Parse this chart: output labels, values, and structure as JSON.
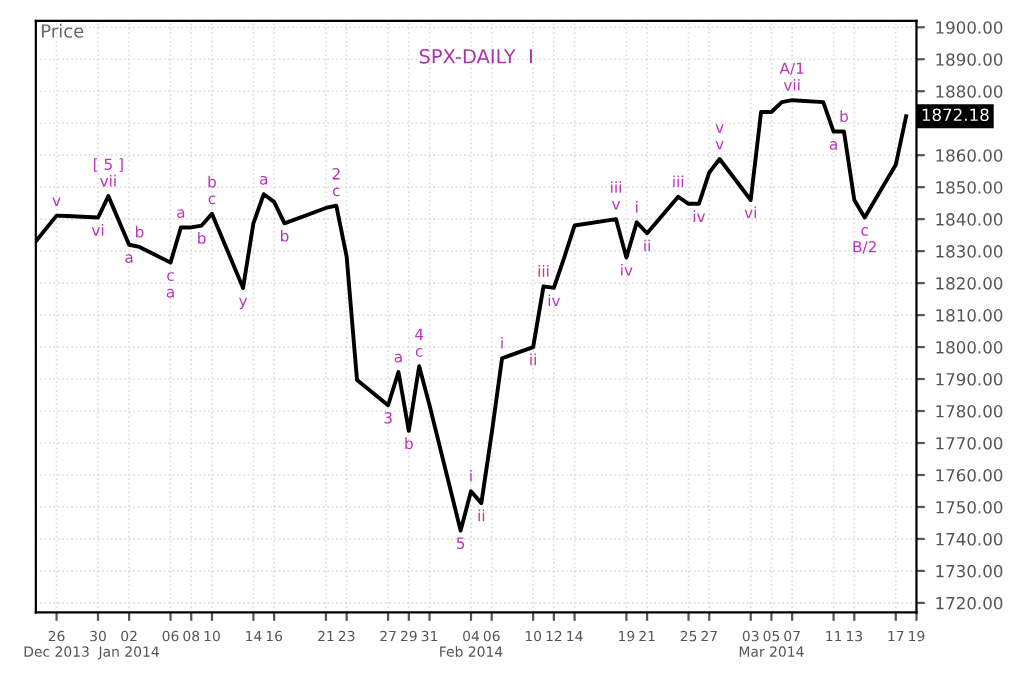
{
  "chart_data": {
    "type": "line",
    "title": "SPX-DAILY  I",
    "ylabel": "Price",
    "x": [
      "2013-12-24",
      "2013-12-26",
      "2013-12-27",
      "2013-12-30",
      "2013-12-31",
      "2014-01-02",
      "2014-01-03",
      "2014-01-06",
      "2014-01-07",
      "2014-01-08",
      "2014-01-09",
      "2014-01-10",
      "2014-01-13",
      "2014-01-14",
      "2014-01-15",
      "2014-01-16",
      "2014-01-17",
      "2014-01-21",
      "2014-01-22",
      "2014-01-23",
      "2014-01-24",
      "2014-01-27",
      "2014-01-28",
      "2014-01-29",
      "2014-01-30",
      "2014-01-31",
      "2014-02-03",
      "2014-02-04",
      "2014-02-05",
      "2014-02-06",
      "2014-02-07",
      "2014-02-10",
      "2014-02-11",
      "2014-02-12",
      "2014-02-13",
      "2014-02-14",
      "2014-02-18",
      "2014-02-19",
      "2014-02-20",
      "2014-02-21",
      "2014-02-24",
      "2014-02-25",
      "2014-02-26",
      "2014-02-27",
      "2014-02-28",
      "2014-03-03",
      "2014-03-04",
      "2014-03-05",
      "2014-03-06",
      "2014-03-07",
      "2014-03-10",
      "2014-03-11",
      "2014-03-12",
      "2014-03-13",
      "2014-03-14",
      "2014-03-17",
      "2014-03-18"
    ],
    "series": [
      {
        "color": "#000000",
        "values": [
          1833.1,
          1841.1,
          1841,
          1840.5,
          1847.2,
          1832,
          1831.3,
          1826.4,
          1837.4,
          1837.4,
          1838,
          1841.7,
          1818.5,
          1838.7,
          1847.8,
          1845.4,
          1838.7,
          1843.5,
          1844.2,
          1828.3,
          1789.7,
          1781.8,
          1792.2,
          1773.8,
          1794,
          1781.8,
          1742.6,
          1754.9,
          1751.2,
          1773,
          1796.5,
          1800,
          1819,
          1818.5,
          1828,
          1838,
          1840,
          1828,
          1839,
          1835.6,
          1847,
          1844.8,
          1844.8,
          1854.6,
          1858.8,
          1846,
          1873.5,
          1873.5,
          1876.6,
          1877.2,
          1876.6,
          1867.4,
          1867.4,
          1846,
          1840.5,
          1857,
          1872.18
        ]
      }
    ],
    "xlim": [
      "2013-12-24",
      "2014-03-19"
    ],
    "xticks": [
      {
        "value": "2013-12-26",
        "label": "26\nDec 2013"
      },
      {
        "value": "2013-12-30",
        "label": "30"
      },
      {
        "value": "2014-01-02",
        "label": "02\nJan 2014"
      },
      {
        "value": "2014-01-06",
        "label": "06"
      },
      {
        "value": "2014-01-08",
        "label": "08"
      },
      {
        "value": "2014-01-10",
        "label": "10"
      },
      {
        "value": "2014-01-14",
        "label": "14"
      },
      {
        "value": "2014-01-16",
        "label": "16"
      },
      {
        "value": "2014-01-21",
        "label": "21"
      },
      {
        "value": "2014-01-23",
        "label": "23"
      },
      {
        "value": "2014-01-27",
        "label": "27"
      },
      {
        "value": "2014-01-29",
        "label": "29"
      },
      {
        "value": "2014-01-31",
        "label": "31"
      },
      {
        "value": "2014-02-04",
        "label": "04\nFeb 2014"
      },
      {
        "value": "2014-02-06",
        "label": "06"
      },
      {
        "value": "2014-02-10",
        "label": "10"
      },
      {
        "value": "2014-02-12",
        "label": "12"
      },
      {
        "value": "2014-02-14",
        "label": "14"
      },
      {
        "value": "2014-02-19",
        "label": "19"
      },
      {
        "value": "2014-02-21",
        "label": "21"
      },
      {
        "value": "2014-02-25",
        "label": "25"
      },
      {
        "value": "2014-02-27",
        "label": "27"
      },
      {
        "value": "2014-03-03",
        "label": "03"
      },
      {
        "value": "2014-03-05",
        "label": "05\nMar 2014"
      },
      {
        "value": "2014-03-07",
        "label": "07"
      },
      {
        "value": "2014-03-11",
        "label": "11"
      },
      {
        "value": "2014-03-13",
        "label": "13"
      },
      {
        "value": "2014-03-17",
        "label": "17"
      },
      {
        "value": "2014-03-19",
        "label": "19"
      }
    ],
    "ylim": [
      1717,
      1902
    ],
    "yticks": [
      {
        "value": 1720,
        "label": "1720.00"
      },
      {
        "value": 1730,
        "label": "1730.00"
      },
      {
        "value": 1740,
        "label": "1740.00"
      },
      {
        "value": 1750,
        "label": "1750.00"
      },
      {
        "value": 1760,
        "label": "1760.00"
      },
      {
        "value": 1770,
        "label": "1770.00"
      },
      {
        "value": 1780,
        "label": "1780.00"
      },
      {
        "value": 1790,
        "label": "1790.00"
      },
      {
        "value": 1800,
        "label": "1800.00"
      },
      {
        "value": 1810,
        "label": "1810.00"
      },
      {
        "value": 1820,
        "label": "1820.00"
      },
      {
        "value": 1830,
        "label": "1830.00"
      },
      {
        "value": 1840,
        "label": "1840.00"
      },
      {
        "value": 1850,
        "label": "1850.00"
      },
      {
        "value": 1860,
        "label": "1860.00"
      },
      {
        "value": 1870,
        "label": null
      },
      {
        "value": 1880,
        "label": "1880.00"
      },
      {
        "value": 1890,
        "label": "1890.00"
      },
      {
        "value": 1900,
        "label": "1900.00"
      }
    ],
    "grid": true,
    "marker": "none",
    "line_style": "solid",
    "annotations": [
      {
        "text": "1872.18",
        "x": "2014-03-18",
        "y": 1872.18
      },
      {
        "text": "v",
        "x": "2013-12-26",
        "y": 1841.1
      },
      {
        "text": "vii",
        "x": "2013-12-31",
        "y": 1847.2
      },
      {
        "text": "[ 5 ]",
        "x": "2013-12-31",
        "y": 1847.2
      },
      {
        "text": "vi",
        "x": "2013-12-30",
        "y": 1840.5
      },
      {
        "text": "a",
        "x": "2014-01-02",
        "y": 1832
      },
      {
        "text": "b",
        "x": "2014-01-03",
        "y": 1831.3
      },
      {
        "text": "c",
        "x": "2014-01-06",
        "y": 1826.4
      },
      {
        "text": "a",
        "x": "2014-01-06",
        "y": 1826.4
      },
      {
        "text": "a",
        "x": "2014-01-07",
        "y": 1837.4
      },
      {
        "text": "b",
        "x": "2014-01-09",
        "y": 1838
      },
      {
        "text": "c",
        "x": "2014-01-10",
        "y": 1841.7
      },
      {
        "text": "b",
        "x": "2014-01-10",
        "y": 1841.7
      },
      {
        "text": "y",
        "x": "2014-01-13",
        "y": 1818.5
      },
      {
        "text": "a",
        "x": "2014-01-15",
        "y": 1847.8
      },
      {
        "text": "b",
        "x": "2014-01-17",
        "y": 1838.7
      },
      {
        "text": "c",
        "x": "2014-01-22",
        "y": 1844.2
      },
      {
        "text": "2",
        "x": "2014-01-22",
        "y": 1844.2
      },
      {
        "text": "3",
        "x": "2014-01-27",
        "y": 1781.8
      },
      {
        "text": "a",
        "x": "2014-01-28",
        "y": 1792.2
      },
      {
        "text": "b",
        "x": "2014-01-29",
        "y": 1773.8
      },
      {
        "text": "c",
        "x": "2014-01-30",
        "y": 1794
      },
      {
        "text": "4",
        "x": "2014-01-30",
        "y": 1794
      },
      {
        "text": "5",
        "x": "2014-02-03",
        "y": 1742.6
      },
      {
        "text": "i",
        "x": "2014-02-04",
        "y": 1754.9
      },
      {
        "text": "ii",
        "x": "2014-02-05",
        "y": 1751.2
      },
      {
        "text": "i",
        "x": "2014-02-07",
        "y": 1796.5
      },
      {
        "text": "ii",
        "x": "2014-02-10",
        "y": 1800
      },
      {
        "text": "iii",
        "x": "2014-02-11",
        "y": 1819
      },
      {
        "text": "iv",
        "x": "2014-02-12",
        "y": 1818.5
      },
      {
        "text": "v",
        "x": "2014-02-18",
        "y": 1840
      },
      {
        "text": "iii",
        "x": "2014-02-18",
        "y": 1840
      },
      {
        "text": "iv",
        "x": "2014-02-19",
        "y": 1828
      },
      {
        "text": "i",
        "x": "2014-02-20",
        "y": 1839
      },
      {
        "text": "ii",
        "x": "2014-02-21",
        "y": 1835.6
      },
      {
        "text": "iii",
        "x": "2014-02-24",
        "y": 1847
      },
      {
        "text": "iv",
        "x": "2014-02-26",
        "y": 1844.8
      },
      {
        "text": "v",
        "x": "2014-02-28",
        "y": 1858.8
      },
      {
        "text": "v",
        "x": "2014-02-28",
        "y": 1858.8
      },
      {
        "text": "vi",
        "x": "2014-03-03",
        "y": 1846
      },
      {
        "text": "vii",
        "x": "2014-03-07",
        "y": 1877.2
      },
      {
        "text": "A/1",
        "x": "2014-03-07",
        "y": 1877.2
      },
      {
        "text": "a",
        "x": "2014-03-11",
        "y": 1867.4
      },
      {
        "text": "b",
        "x": "2014-03-12",
        "y": 1867.4
      },
      {
        "text": "c",
        "x": "2014-03-14",
        "y": 1840.5
      },
      {
        "text": "B/2",
        "x": "2014-03-14",
        "y": 1840.5
      }
    ]
  }
}
